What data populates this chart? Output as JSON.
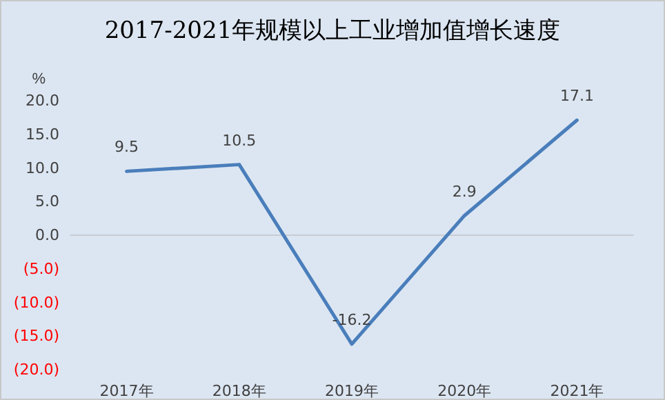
{
  "chart_data": {
    "type": "line",
    "title": "2017-2021年规模以上工业增加值增长速度",
    "ylabel": "%",
    "categories": [
      "2017年",
      "2018年",
      "2019年",
      "2020年",
      "2021年"
    ],
    "series": [
      {
        "color": "#4a7ebb",
        "values": [
          9.5,
          10.5,
          -16.2,
          2.9,
          17.1
        ]
      }
    ],
    "ylim": [
      -20,
      20
    ],
    "yticks": [
      {
        "value": -20,
        "label": "(20.0)"
      },
      {
        "value": -15,
        "label": "(15.0)"
      },
      {
        "value": -10,
        "label": "(10.0)"
      },
      {
        "value": -5,
        "label": "(5.0)"
      },
      {
        "value": 0,
        "label": "0.0"
      },
      {
        "value": 5,
        "label": "5.0"
      },
      {
        "value": 10,
        "label": "10.0"
      },
      {
        "value": 15,
        "label": "15.0"
      },
      {
        "value": 20,
        "label": "20.0"
      }
    ],
    "data_labels": true,
    "marker": "none",
    "line_style": "solid"
  }
}
